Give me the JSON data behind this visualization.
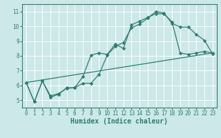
{
  "xlabel": "Humidex (Indice chaleur)",
  "bg_color": "#cce8e8",
  "grid_color": "#ffffff",
  "line_color": "#2e7d6e",
  "xlim": [
    -0.5,
    23.5
  ],
  "ylim": [
    4.5,
    11.5
  ],
  "xticks": [
    0,
    1,
    2,
    3,
    4,
    5,
    6,
    7,
    8,
    9,
    10,
    11,
    12,
    13,
    14,
    15,
    16,
    17,
    18,
    19,
    20,
    21,
    22,
    23
  ],
  "yticks": [
    5,
    6,
    7,
    8,
    9,
    10,
    11
  ],
  "line1_x": [
    0,
    1,
    2,
    3,
    4,
    5,
    6,
    7,
    8,
    9,
    10,
    11,
    12,
    13,
    14,
    15,
    16,
    17,
    18,
    19,
    20,
    21,
    22,
    23
  ],
  "line1_y": [
    6.2,
    4.9,
    6.3,
    5.3,
    5.45,
    5.8,
    5.85,
    6.6,
    8.05,
    8.2,
    8.1,
    8.8,
    8.5,
    10.1,
    10.35,
    10.6,
    10.85,
    10.85,
    10.3,
    8.2,
    8.1,
    8.2,
    8.3,
    8.2
  ],
  "line2_x": [
    0,
    1,
    2,
    3,
    4,
    5,
    6,
    7,
    8,
    9,
    10,
    11,
    12,
    13,
    14,
    15,
    16,
    17,
    18,
    19,
    20,
    21,
    22,
    23
  ],
  "line2_y": [
    6.2,
    4.9,
    6.3,
    5.2,
    5.4,
    5.85,
    5.85,
    6.15,
    6.15,
    6.75,
    8.05,
    8.65,
    8.9,
    9.9,
    10.15,
    10.55,
    11.0,
    10.9,
    10.2,
    9.95,
    9.95,
    9.45,
    9.05,
    8.15
  ],
  "line3_x": [
    0,
    23
  ],
  "line3_y": [
    6.2,
    8.2
  ],
  "tick_fontsize": 5.5,
  "xlabel_fontsize": 7,
  "marker_size": 2.5
}
